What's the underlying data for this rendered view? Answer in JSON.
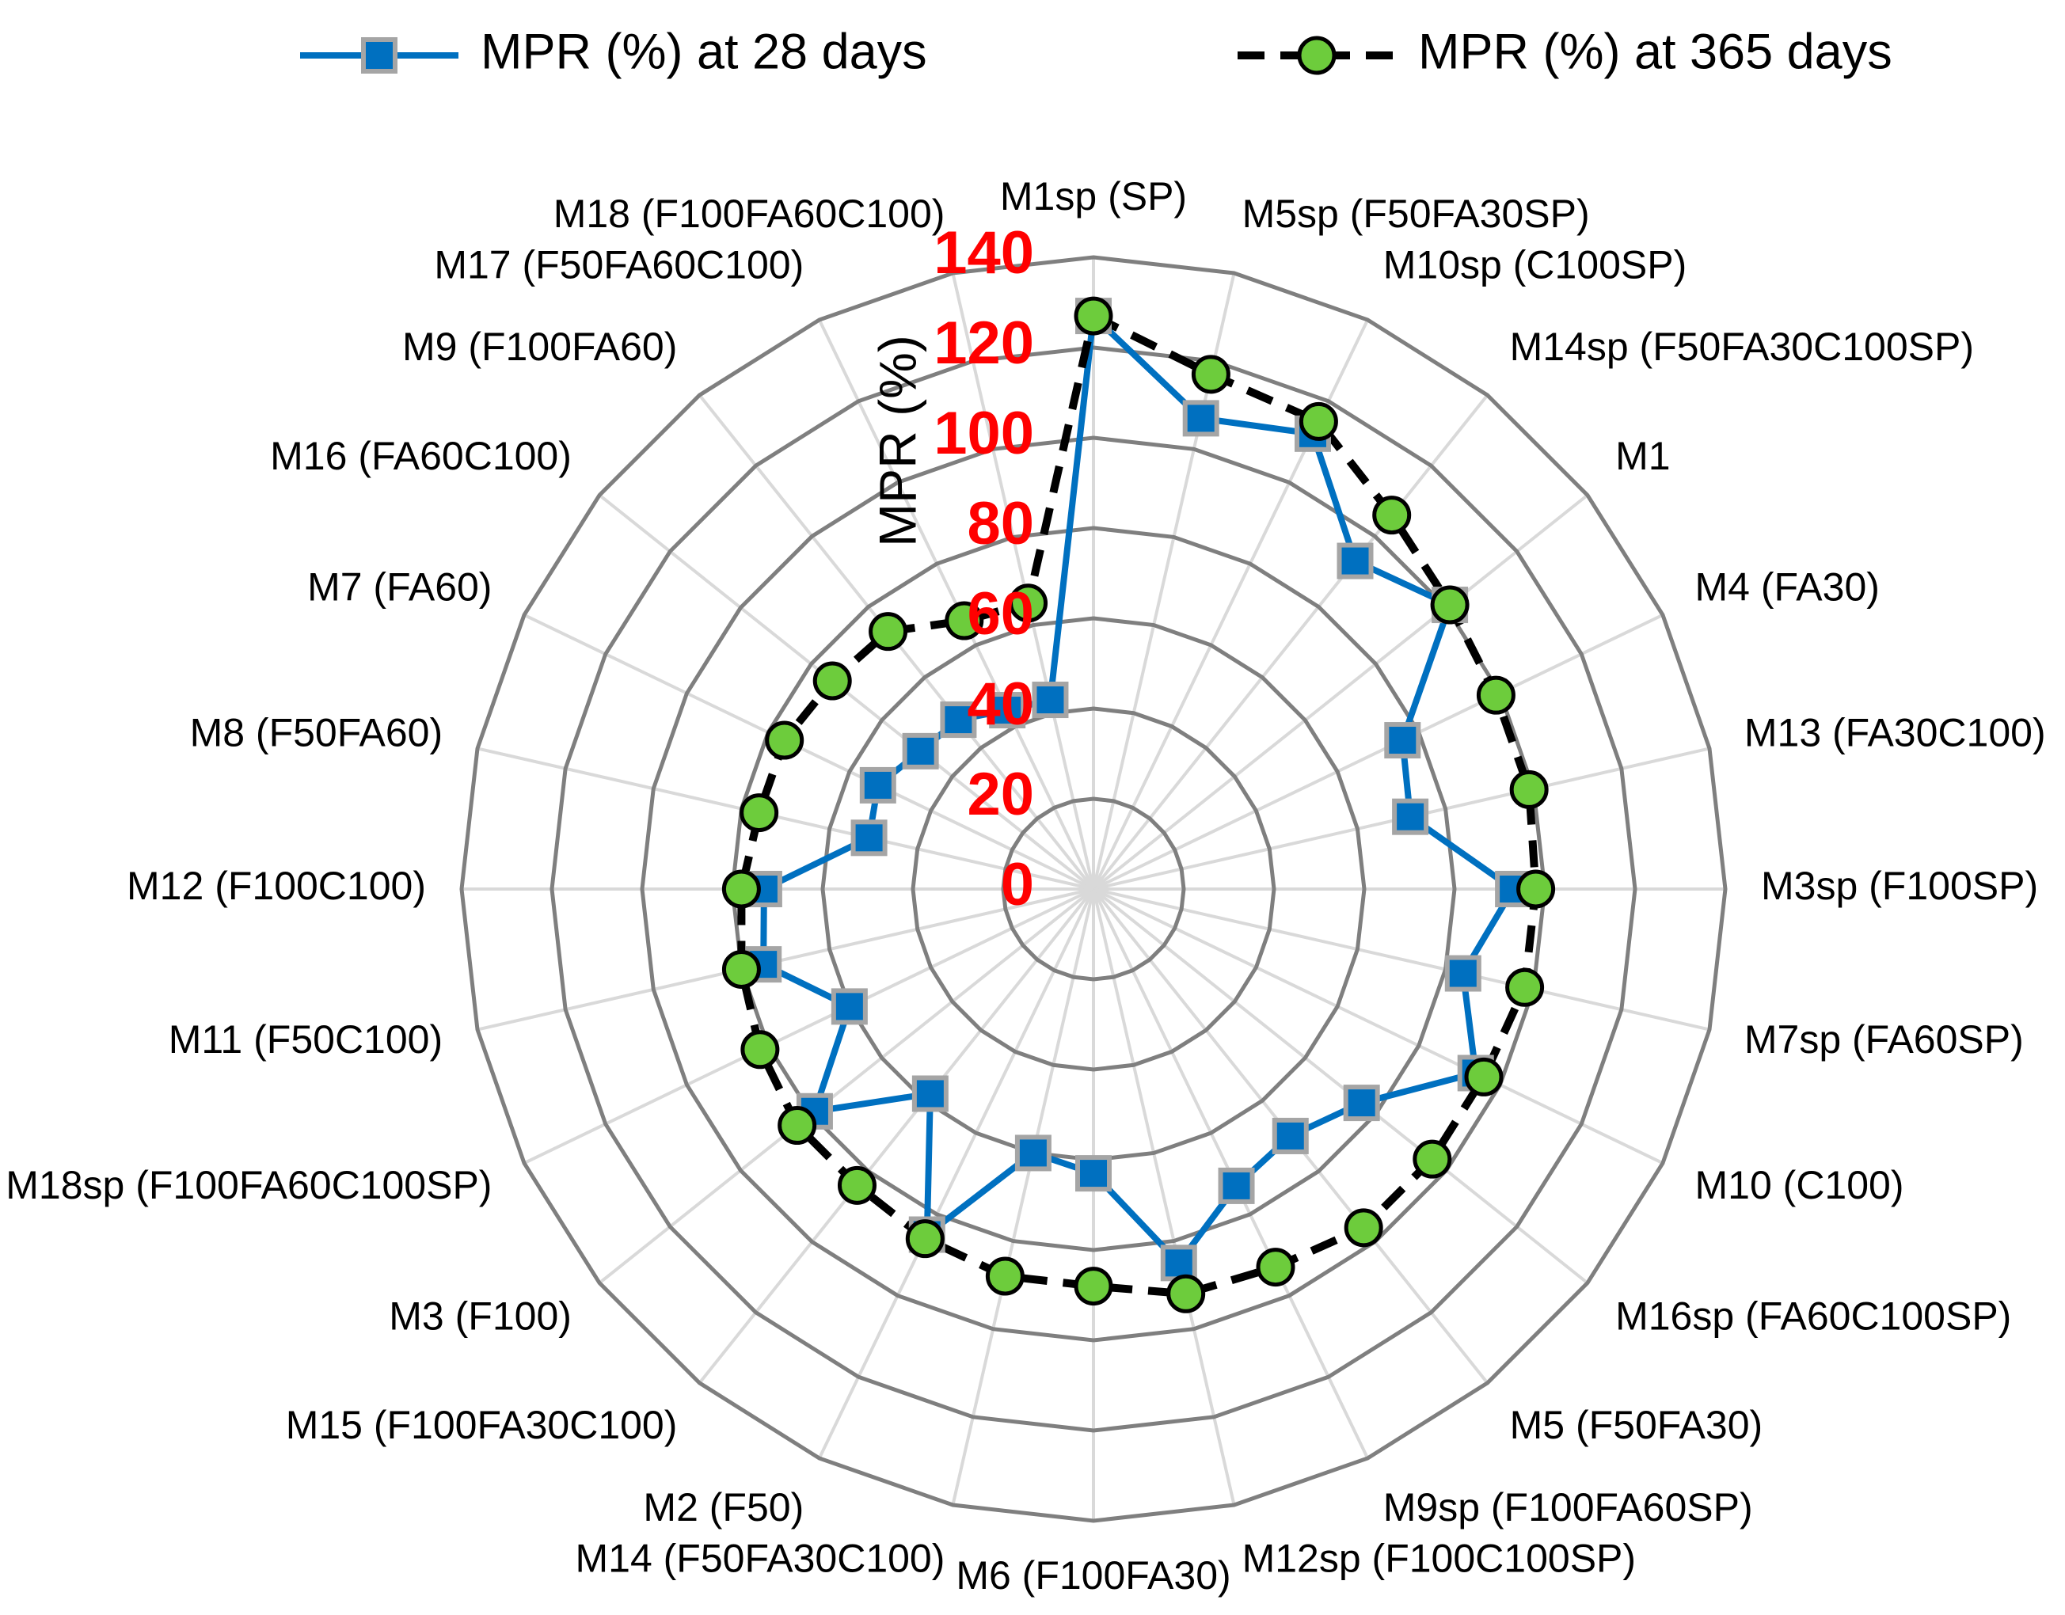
{
  "chart_data": {
    "type": "radar",
    "axis_title": "MPR (%)",
    "categories": [
      "M1sp (SP)",
      "M5sp (F50FA30SP)",
      "M10sp (C100SP)",
      "M14sp (F50FA30C100SP)",
      "M1",
      "M4 (FA30)",
      "M13 (FA30C100)",
      "M3sp (F100SP)",
      "M7sp (FA60SP)",
      "M10 (C100)",
      "M16sp (FA60C100SP)",
      "M5 (F50FA30)",
      "M9sp (F100FA60SP)",
      "M12sp (F100C100SP)",
      "M6 (F100FA30)",
      "M14 (F50FA30C100)",
      "M2 (F50)",
      "M15 (F100FA30C100)",
      "M3 (F100)",
      "M18sp (F100FA60C100SP)",
      "M11 (F50C100)",
      "M12 (F100C100)",
      "M8 (F50FA60)",
      "M7 (FA60)",
      "M16 (FA60C100)",
      "M9 (F100FA60)",
      "M17 (F50FA60C100)",
      "M18 (F100FA60C100)"
    ],
    "series": [
      {
        "name": "MPR (%) at 28 days",
        "color": "#0070c0",
        "line_style": "solid",
        "marker": "square",
        "values": [
          127,
          107,
          112,
          93,
          101,
          76,
          72,
          93,
          84,
          94,
          76,
          70,
          73,
          85,
          63,
          60,
          85,
          58,
          79,
          60,
          75,
          73,
          51,
          53,
          49,
          48,
          44,
          43
        ]
      },
      {
        "name": "MPR (%) at 365 days",
        "color": "#000000",
        "line_style": "dashed",
        "marker": "circle",
        "values": [
          127,
          117,
          115,
          106,
          101,
          99,
          99,
          98,
          98,
          96,
          96,
          96,
          93,
          92,
          88,
          88,
          86,
          84,
          84,
          82,
          80,
          78,
          76,
          76,
          74,
          73,
          66,
          65
        ]
      }
    ],
    "rlim": [
      0,
      140
    ],
    "rticks": [
      0,
      20,
      40,
      60,
      80,
      100,
      120,
      140
    ],
    "tick_color": "#ff0000",
    "legend": "top"
  }
}
